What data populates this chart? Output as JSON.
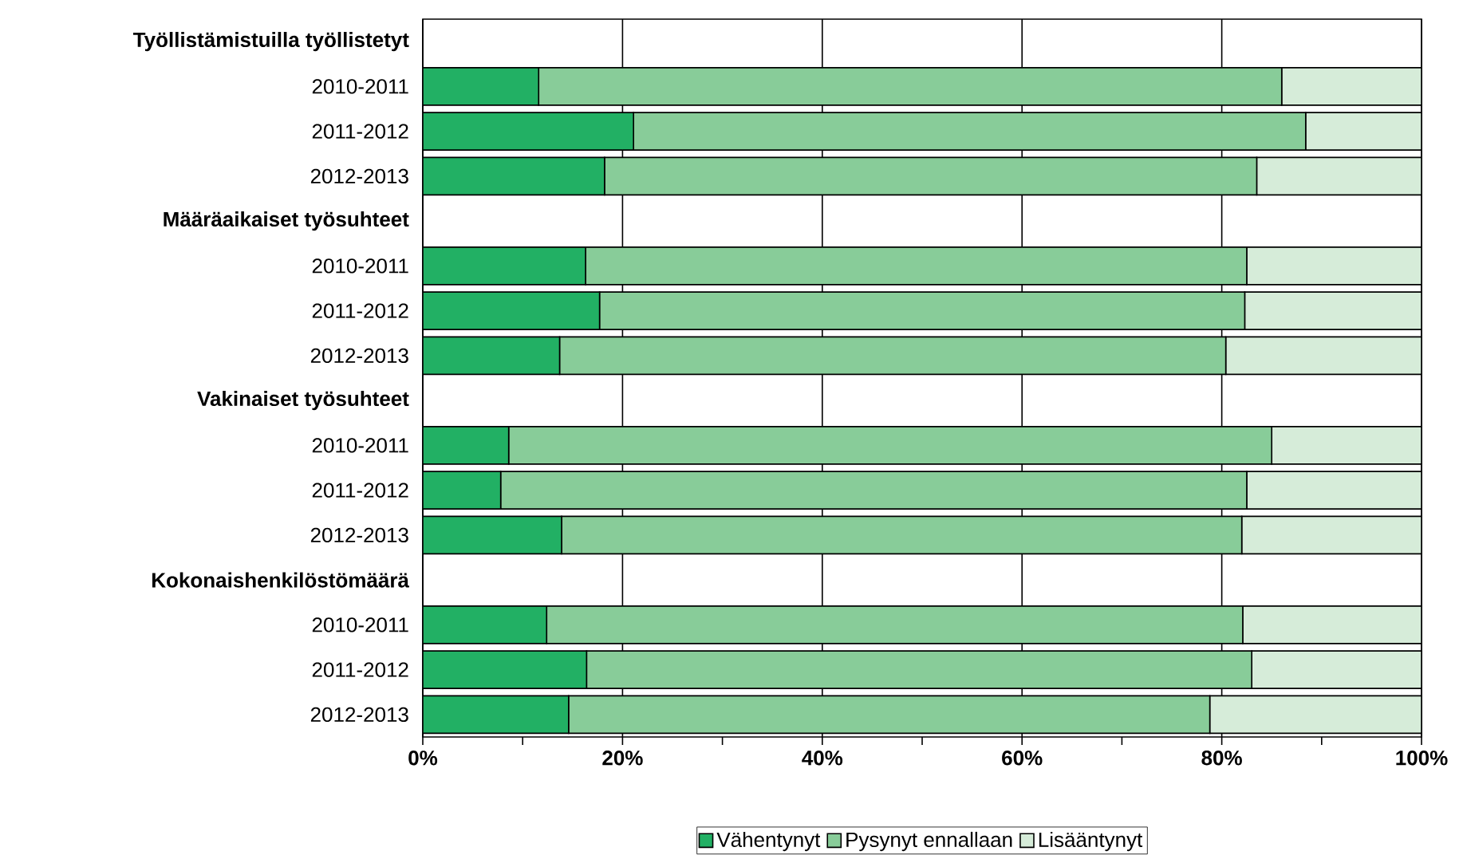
{
  "chart_data": {
    "type": "bar",
    "orientation": "horizontal",
    "stacked": true,
    "categories": [
      "Työllistämistuilla työllistetyt",
      "2010-2011",
      "2011-2012",
      "2012-2013",
      "Määräaikaiset työsuhteet",
      "2010-2011",
      "2011-2012",
      "2012-2013",
      "Vakinaiset työsuhteet",
      "2010-2011",
      "2011-2012",
      "2012-2013",
      "Kokonaishenkilöstömäärä",
      "2010-2011",
      "2011-2012",
      "2012-2013"
    ],
    "series": [
      {
        "name": "Vähentynyt",
        "color": "#22b064",
        "values": [
          null,
          11.6,
          21.1,
          18.2,
          null,
          16.3,
          17.7,
          13.7,
          null,
          8.6,
          7.8,
          13.9,
          null,
          12.4,
          16.4,
          14.6
        ]
      },
      {
        "name": "Pysynyt ennallaan",
        "color": "#88cc99",
        "values": [
          null,
          74.4,
          67.3,
          65.3,
          null,
          66.2,
          64.6,
          66.7,
          null,
          76.4,
          74.7,
          68.1,
          null,
          69.7,
          66.6,
          64.2
        ]
      },
      {
        "name": "Lisääntynyt",
        "color": "#d6ecd9",
        "values": [
          null,
          14.0,
          11.6,
          16.5,
          null,
          17.5,
          17.7,
          19.6,
          null,
          15.0,
          17.5,
          18.0,
          null,
          17.9,
          17.0,
          21.2
        ]
      }
    ],
    "xlim": [
      0,
      100
    ],
    "xticks": [
      {
        "value": 0,
        "label": "0%"
      },
      {
        "value": 10,
        "label": null
      },
      {
        "value": 20,
        "label": "20%"
      },
      {
        "value": 30,
        "label": null
      },
      {
        "value": 40,
        "label": "40%"
      },
      {
        "value": 50,
        "label": null
      },
      {
        "value": 60,
        "label": "60%"
      },
      {
        "value": 70,
        "label": null
      },
      {
        "value": 80,
        "label": "80%"
      },
      {
        "value": 90,
        "label": null
      },
      {
        "value": 100,
        "label": "100%"
      }
    ],
    "grid": "x",
    "legend": "bottom"
  }
}
